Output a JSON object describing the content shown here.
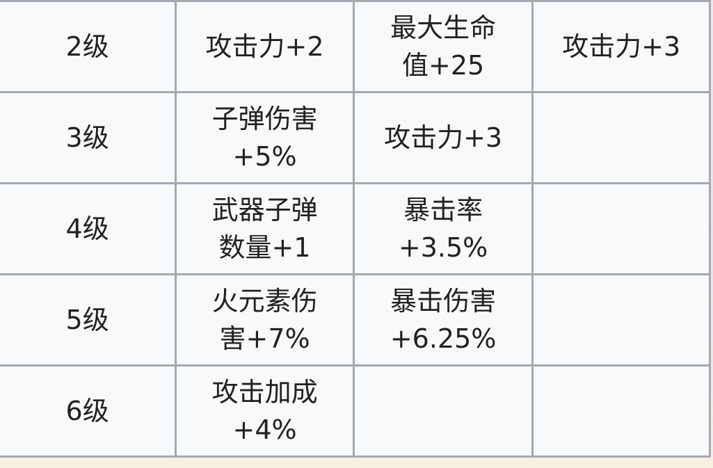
{
  "rows": [
    {
      "level": "2级",
      "cells": [
        "攻击力+2",
        "最大生命\n值+25",
        "攻击力+3"
      ]
    },
    {
      "level": "3级",
      "cells": [
        "子弹伤害\n+5%",
        "攻击力+3",
        ""
      ]
    },
    {
      "level": "4级",
      "cells": [
        "武器子弹\n数量+1",
        "暴击率\n+3.5%",
        ""
      ]
    },
    {
      "level": "5级",
      "cells": [
        "火元素伤\n害+7%",
        "暴击伤害\n+6.25%",
        ""
      ]
    },
    {
      "level": "6级",
      "cells": [
        "攻击加成\n+4%",
        "",
        ""
      ]
    }
  ]
}
